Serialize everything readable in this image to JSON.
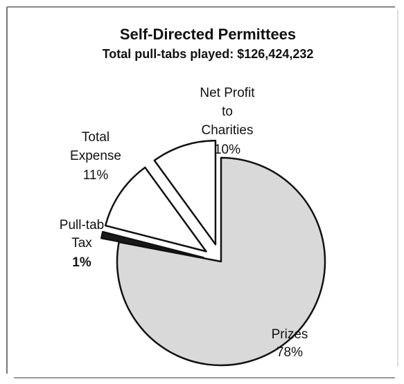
{
  "chart_data": {
    "type": "pie",
    "title": "Self-Directed Permittees",
    "subtitle": "Total pull-tabs played: $126,424,232",
    "slices": [
      {
        "name": "Prizes",
        "value": 78,
        "label": "78%",
        "fill": "#d9d9d9",
        "exploded": false
      },
      {
        "name": "Pull-tab Tax",
        "value": 1,
        "label": "1%",
        "fill": "#1a1a1a",
        "exploded": true
      },
      {
        "name": "Total Expense",
        "value": 11,
        "label": "11%",
        "fill": "#ffffff",
        "exploded": true
      },
      {
        "name": "Net Profit to Charities",
        "value": 10,
        "label": "10%",
        "fill": "#ffffff",
        "exploded": true
      }
    ]
  }
}
